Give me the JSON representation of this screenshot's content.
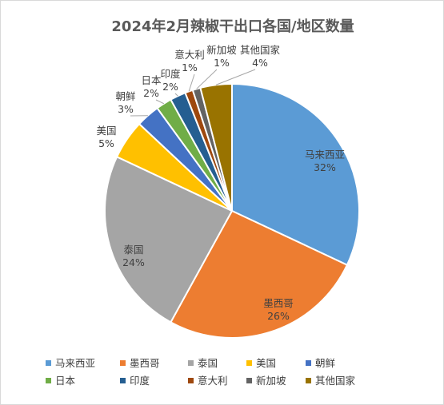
{
  "chart_data": {
    "type": "pie",
    "title": "2024年2月辣椒干出口各国/地区数量",
    "slices": [
      {
        "label": "马来西亚",
        "value": 32,
        "value_label": "32%",
        "color": "#5b9bd5"
      },
      {
        "label": "墨西哥",
        "value": 26,
        "value_label": "26%",
        "color": "#ed7d31"
      },
      {
        "label": "泰国",
        "value": 24,
        "value_label": "24%",
        "color": "#a5a5a5"
      },
      {
        "label": "美国",
        "value": 5,
        "value_label": "5%",
        "color": "#ffc000"
      },
      {
        "label": "朝鲜",
        "value": 3,
        "value_label": "3%",
        "color": "#4472c4"
      },
      {
        "label": "日本",
        "value": 2,
        "value_label": "2%",
        "color": "#70ad47"
      },
      {
        "label": "印度",
        "value": 2,
        "value_label": "2%",
        "color": "#255e91"
      },
      {
        "label": "意大利",
        "value": 1,
        "value_label": "1%",
        "color": "#9e480e"
      },
      {
        "label": "新加坡",
        "value": 1,
        "value_label": "1%",
        "color": "#636363"
      },
      {
        "label": "其他国家",
        "value": 4,
        "value_label": "4%",
        "color": "#997300"
      }
    ],
    "legend_position": "bottom",
    "start_angle_deg": 0,
    "direction": "clockwise"
  }
}
